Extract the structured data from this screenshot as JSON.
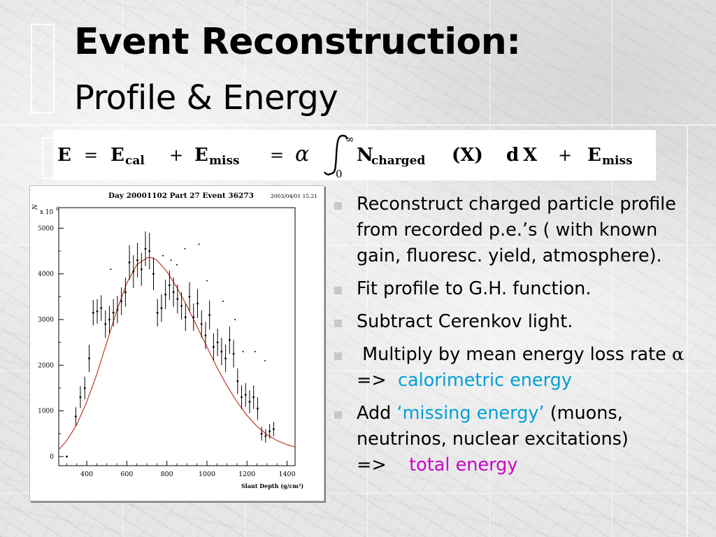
{
  "slide": {
    "title_bold": "Event Reconstruction:",
    "title_sub": "Profile & Energy"
  },
  "formula": {
    "e": "E",
    "eq": "=",
    "e_cal": "E",
    "cal_sub": "cal",
    "plus": "+",
    "e_miss": "E",
    "miss_sub": "miss",
    "alpha": "α",
    "upper_limit": "∞",
    "lower_limit": "0",
    "n": "N",
    "charged_sub": "charged",
    "arg": "(X)",
    "dx_d": "d",
    "dx_x": "X"
  },
  "plot": {
    "header_left": "Day 20001102 Part  27 Event  36273",
    "header_right": "2003/04/01   15.21",
    "y_unit_label": "N",
    "y_unit_sup": "ch",
    "y_scale": "x 10",
    "y_scale_exp": "6"
  },
  "chart_data": {
    "type": "scatter",
    "title": "Day 20001102 Part  27 Event  36273",
    "timestamp": "2003/04/01   15.21",
    "xlabel": "Slant Depth (g/cm²)",
    "ylabel": "N ch x 10⁶",
    "xlim": [
      260,
      1440
    ],
    "ylim": [
      -200,
      5450
    ],
    "x_ticks": [
      400,
      600,
      800,
      1000,
      1200,
      1400
    ],
    "y_ticks": [
      0,
      1000,
      2000,
      3000,
      4000,
      5000
    ],
    "series": [
      {
        "type": "errorbar",
        "points": [
          {
            "x": 300,
            "y": 0,
            "err": 0
          },
          {
            "x": 345,
            "y": 880,
            "err": 200
          },
          {
            "x": 368,
            "y": 1300,
            "err": 240
          },
          {
            "x": 390,
            "y": 1500,
            "err": 250
          },
          {
            "x": 412,
            "y": 2150,
            "err": 300
          },
          {
            "x": 432,
            "y": 3150,
            "err": 280
          },
          {
            "x": 452,
            "y": 3180,
            "err": 270
          },
          {
            "x": 472,
            "y": 3250,
            "err": 280
          },
          {
            "x": 493,
            "y": 2900,
            "err": 300
          },
          {
            "x": 513,
            "y": 3000,
            "err": 300
          },
          {
            "x": 533,
            "y": 3150,
            "err": 300
          },
          {
            "x": 553,
            "y": 3220,
            "err": 300
          },
          {
            "x": 573,
            "y": 3400,
            "err": 300
          },
          {
            "x": 593,
            "y": 3600,
            "err": 320
          },
          {
            "x": 613,
            "y": 4250,
            "err": 380
          },
          {
            "x": 633,
            "y": 4050,
            "err": 360
          },
          {
            "x": 653,
            "y": 4300,
            "err": 380
          },
          {
            "x": 673,
            "y": 4100,
            "err": 360
          },
          {
            "x": 693,
            "y": 4550,
            "err": 380
          },
          {
            "x": 713,
            "y": 4500,
            "err": 400
          },
          {
            "x": 733,
            "y": 4000,
            "err": 360
          },
          {
            "x": 753,
            "y": 3150,
            "err": 300
          },
          {
            "x": 773,
            "y": 3250,
            "err": 300
          },
          {
            "x": 793,
            "y": 3550,
            "err": 320
          },
          {
            "x": 813,
            "y": 3750,
            "err": 320
          },
          {
            "x": 833,
            "y": 3600,
            "err": 320
          },
          {
            "x": 853,
            "y": 3450,
            "err": 320
          },
          {
            "x": 873,
            "y": 3300,
            "err": 300
          },
          {
            "x": 893,
            "y": 3050,
            "err": 300
          },
          {
            "x": 913,
            "y": 3500,
            "err": 320
          },
          {
            "x": 933,
            "y": 3050,
            "err": 300
          },
          {
            "x": 953,
            "y": 3350,
            "err": 320
          },
          {
            "x": 973,
            "y": 2900,
            "err": 300
          },
          {
            "x": 993,
            "y": 2650,
            "err": 300
          },
          {
            "x": 1013,
            "y": 3100,
            "err": 320
          },
          {
            "x": 1033,
            "y": 2400,
            "err": 300
          },
          {
            "x": 1053,
            "y": 2500,
            "err": 300
          },
          {
            "x": 1073,
            "y": 2300,
            "err": 300
          },
          {
            "x": 1093,
            "y": 2150,
            "err": 300
          },
          {
            "x": 1113,
            "y": 2550,
            "err": 300
          },
          {
            "x": 1133,
            "y": 2250,
            "err": 300
          },
          {
            "x": 1153,
            "y": 1650,
            "err": 280
          },
          {
            "x": 1173,
            "y": 1300,
            "err": 260
          },
          {
            "x": 1193,
            "y": 1350,
            "err": 260
          },
          {
            "x": 1213,
            "y": 1200,
            "err": 250
          },
          {
            "x": 1233,
            "y": 1300,
            "err": 260
          },
          {
            "x": 1253,
            "y": 1050,
            "err": 250
          },
          {
            "x": 1273,
            "y": 500,
            "err": 150
          },
          {
            "x": 1293,
            "y": 450,
            "err": 150
          },
          {
            "x": 1313,
            "y": 550,
            "err": 160
          },
          {
            "x": 1333,
            "y": 600,
            "err": 160
          }
        ]
      },
      {
        "type": "points",
        "points": [
          {
            "x": 520,
            "y": 4100
          },
          {
            "x": 780,
            "y": 4400
          },
          {
            "x": 820,
            "y": 4300
          },
          {
            "x": 850,
            "y": 4200
          },
          {
            "x": 890,
            "y": 4550
          },
          {
            "x": 960,
            "y": 4650
          },
          {
            "x": 1000,
            "y": 3850
          },
          {
            "x": 1080,
            "y": 3400
          },
          {
            "x": 1140,
            "y": 3000
          },
          {
            "x": 1180,
            "y": 2300
          },
          {
            "x": 1240,
            "y": 2300
          },
          {
            "x": 1290,
            "y": 2100
          }
        ]
      },
      {
        "type": "curve",
        "color": "#c0392b",
        "x": [
          260,
          300,
          350,
          400,
          450,
          500,
          550,
          600,
          650,
          700,
          720,
          750,
          800,
          850,
          900,
          950,
          1000,
          1050,
          1100,
          1150,
          1200,
          1250,
          1300,
          1350,
          1400,
          1440
        ],
        "y": [
          150,
          350,
          700,
          1200,
          1800,
          2500,
          3200,
          3800,
          4200,
          4350,
          4360,
          4300,
          4050,
          3700,
          3300,
          2850,
          2400,
          1950,
          1550,
          1200,
          900,
          660,
          480,
          350,
          260,
          210
        ]
      }
    ]
  },
  "bullets": [
    {
      "text": "Reconstruct charged particle profile from recorded p.e.’s ( with known gain, fluoresc. yield, atmosphere)."
    },
    {
      "text": "Fit profile to G.H. function."
    },
    {
      "text": "Subtract Cerenkov light."
    },
    {
      "text": " Multiply by mean energy loss rate ",
      "symbol": "α",
      "arrow": "  =>  ",
      "highlight": "calorimetric energy"
    },
    {
      "text": "Add ",
      "highlight": "‘missing energy’",
      "text2": " (muons, neutrinos, nuclear excitations)",
      "arrow": "=>    ",
      "highlight2": "total energy"
    }
  ],
  "colors": {
    "calorimetric": "#00a0d8",
    "missing": "#00a0d8",
    "total": "#cc00cc",
    "fit_curve": "#c0392b"
  }
}
